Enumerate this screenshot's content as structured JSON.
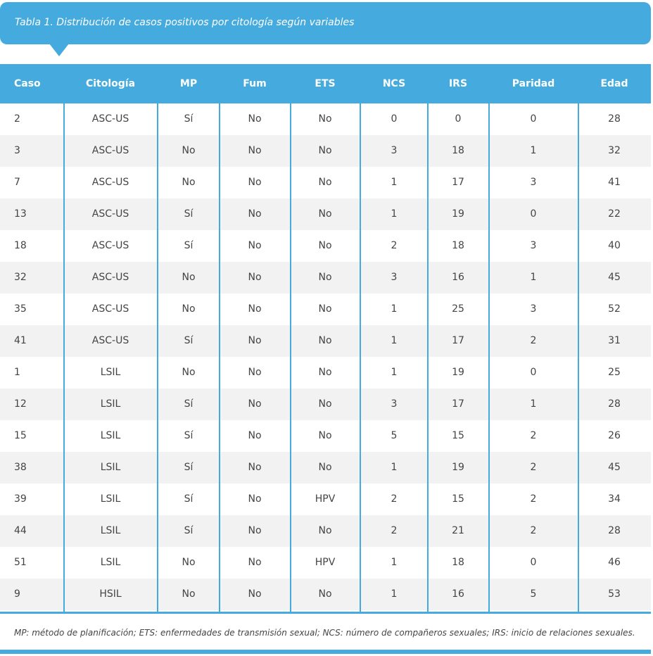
{
  "title": "Tabla 1. Distribución de casos positivos por citología según variables",
  "table": {
    "header": [
      "Caso",
      "Citología",
      "MP",
      "Fum",
      "ETS",
      "NCS",
      "IRS",
      "Paridad",
      "Edad"
    ],
    "rows": [
      [
        "2",
        "ASC-US",
        "Sí",
        "No",
        "No",
        "0",
        "0",
        "0",
        "28"
      ],
      [
        "3",
        "ASC-US",
        "No",
        "No",
        "No",
        "3",
        "18",
        "1",
        "32"
      ],
      [
        "7",
        "ASC-US",
        "No",
        "No",
        "No",
        "1",
        "17",
        "3",
        "41"
      ],
      [
        "13",
        "ASC-US",
        "Sí",
        "No",
        "No",
        "1",
        "19",
        "0",
        "22"
      ],
      [
        "18",
        "ASC-US",
        "Sí",
        "No",
        "No",
        "2",
        "18",
        "3",
        "40"
      ],
      [
        "32",
        "ASC-US",
        "No",
        "No",
        "No",
        "3",
        "16",
        "1",
        "45"
      ],
      [
        "35",
        "ASC-US",
        "No",
        "No",
        "No",
        "1",
        "25",
        "3",
        "52"
      ],
      [
        "41",
        "ASC-US",
        "Sí",
        "No",
        "No",
        "1",
        "17",
        "2",
        "31"
      ],
      [
        "1",
        "LSIL",
        "No",
        "No",
        "No",
        "1",
        "19",
        "0",
        "25"
      ],
      [
        "12",
        "LSIL",
        "Sí",
        "No",
        "No",
        "3",
        "17",
        "1",
        "28"
      ],
      [
        "15",
        "LSIL",
        "Sí",
        "No",
        "No",
        "5",
        "15",
        "2",
        "26"
      ],
      [
        "38",
        "LSIL",
        "Sí",
        "No",
        "No",
        "1",
        "19",
        "2",
        "45"
      ],
      [
        "39",
        "LSIL",
        "Sí",
        "No",
        "HPV",
        "2",
        "15",
        "2",
        "34"
      ],
      [
        "44",
        "LSIL",
        "Sí",
        "No",
        "No",
        "2",
        "21",
        "2",
        "28"
      ],
      [
        "51",
        "LSIL",
        "No",
        "No",
        "HPV",
        "1",
        "18",
        "0",
        "46"
      ],
      [
        "9",
        "HSIL",
        "No",
        "No",
        "No",
        "1",
        "16",
        "5",
        "53"
      ]
    ]
  },
  "footnote": "MP: método de planificación; ETS: enfermedades de transmisión sexual; NCS: número de compañeros sexuales; IRS: inicio de relaciones sexuales."
}
